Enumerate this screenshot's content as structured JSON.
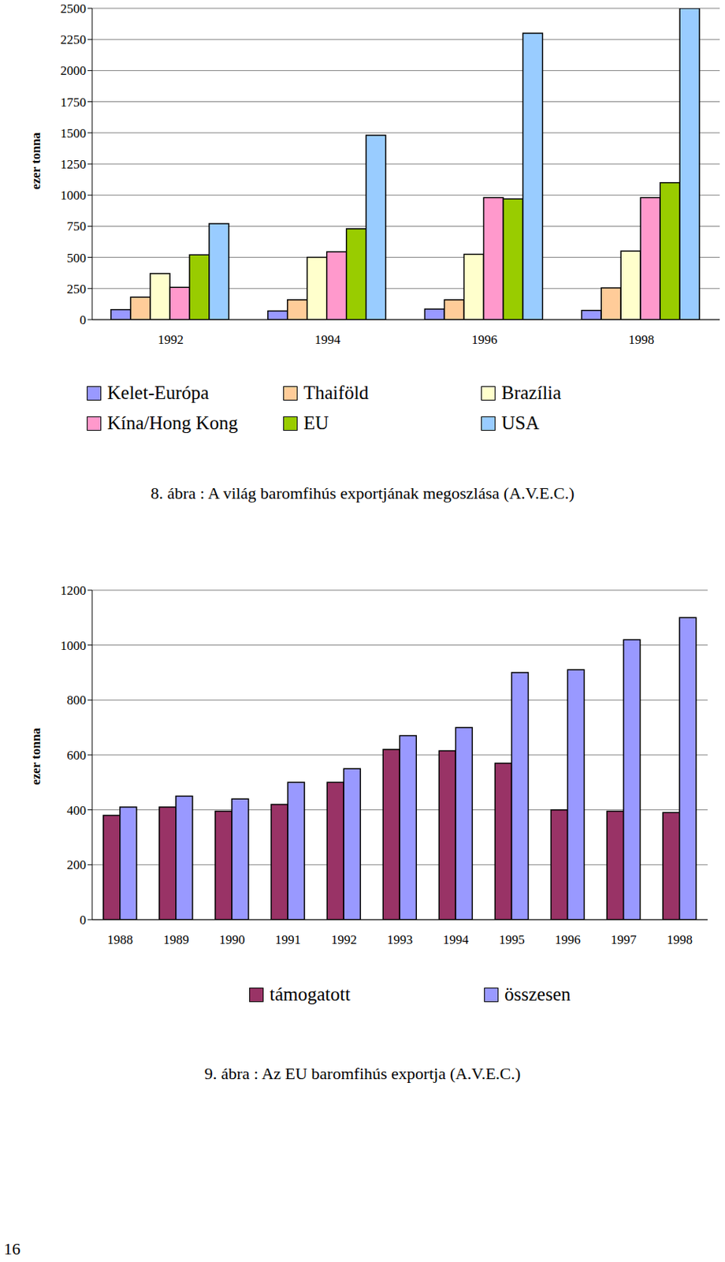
{
  "chart_data": [
    {
      "type": "bar",
      "title": "8. ábra : A világ baromfihús exportjának megoszlása (A.V.E.C.)",
      "ylabel": "ezer tonna",
      "categories": [
        "1992",
        "1994",
        "1996",
        "1998"
      ],
      "series": [
        {
          "name": "Kelet-Európa",
          "color": "#9999ff",
          "values": [
            80,
            70,
            85,
            75
          ]
        },
        {
          "name": "Thaiföld",
          "color": "#ffcc99",
          "values": [
            180,
            160,
            160,
            255
          ]
        },
        {
          "name": "Brazília",
          "color": "#ffffcc",
          "values": [
            370,
            500,
            525,
            550
          ]
        },
        {
          "name": "Kína/Hong Kong",
          "color": "#ff99cc",
          "values": [
            260,
            545,
            980,
            980
          ]
        },
        {
          "name": "EU",
          "color": "#99cc00",
          "values": [
            520,
            730,
            970,
            1100
          ]
        },
        {
          "name": "USA",
          "color": "#99ccff",
          "values": [
            770,
            1480,
            2300,
            2500
          ]
        }
      ],
      "ylim": [
        0,
        2500
      ],
      "yticks": [
        0,
        250,
        500,
        750,
        1000,
        1250,
        1500,
        1750,
        2000,
        2250,
        2500
      ],
      "grid": true,
      "legend": "bottom"
    },
    {
      "type": "bar",
      "title": "9. ábra : Az EU baromfihús exportja (A.V.E.C.)",
      "ylabel": "ezer tonna",
      "categories": [
        "1988",
        "1989",
        "1990",
        "1991",
        "1992",
        "1993",
        "1994",
        "1995",
        "1996",
        "1997",
        "1998"
      ],
      "series": [
        {
          "name": "támogatott",
          "color": "#993366",
          "values": [
            380,
            410,
            395,
            420,
            500,
            620,
            615,
            570,
            400,
            395,
            390
          ]
        },
        {
          "name": "összesen",
          "color": "#9999ff",
          "values": [
            410,
            450,
            440,
            500,
            550,
            670,
            700,
            900,
            910,
            1020,
            1100
          ]
        }
      ],
      "ylim": [
        0,
        1200
      ],
      "yticks": [
        0,
        200,
        400,
        600,
        800,
        1000,
        1200
      ],
      "grid": true,
      "legend": "bottom"
    }
  ],
  "page_number": "16"
}
